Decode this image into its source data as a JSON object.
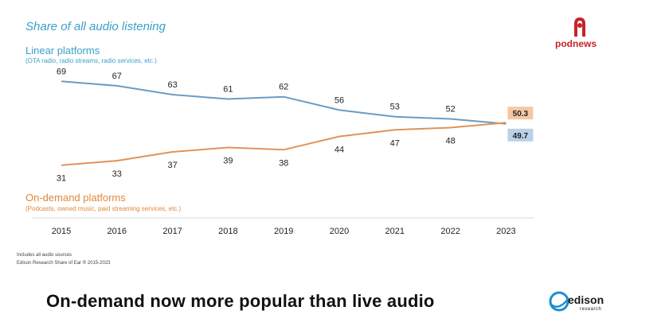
{
  "chart_data": {
    "type": "line",
    "title": "Share of all audio listening",
    "categories": [
      "2015",
      "2016",
      "2017",
      "2018",
      "2019",
      "2020",
      "2021",
      "2022",
      "2023"
    ],
    "series": [
      {
        "name": "Linear platforms",
        "subtitle": "(OTA radio, radio streams, radio services, etc.)",
        "values": [
          69,
          67,
          63,
          61,
          62,
          56,
          53,
          52,
          49.7
        ],
        "labels": [
          "69",
          "67",
          "63",
          "61",
          "62",
          "56",
          "53",
          "52",
          "49.7"
        ],
        "color": "#6a9cc4",
        "badge_color": "#b9d2e8"
      },
      {
        "name": "On-demand platforms",
        "subtitle": "(Podcasts, owned music, paid streaming services, etc.)",
        "values": [
          31,
          33,
          37,
          39,
          38,
          44,
          47,
          48,
          50.3
        ],
        "labels": [
          "31",
          "33",
          "37",
          "39",
          "38",
          "44",
          "47",
          "48",
          "50.3"
        ],
        "color": "#e0935a",
        "badge_color": "#f4c8a6"
      }
    ],
    "ylim": [
      28,
      72
    ],
    "grid": false
  },
  "footnotes": [
    "Includes all audio sources",
    "Edison Research Share of Ear ® 2015-2023"
  ],
  "headline": "On-demand now more popular than live audio",
  "logos": {
    "podnews": "podnews",
    "edison": "edison",
    "edison_sub": "research"
  },
  "colors": {
    "title": "#3aa0c8",
    "podnews_red": "#c8232a",
    "edison_blue": "#1e8fd0"
  }
}
